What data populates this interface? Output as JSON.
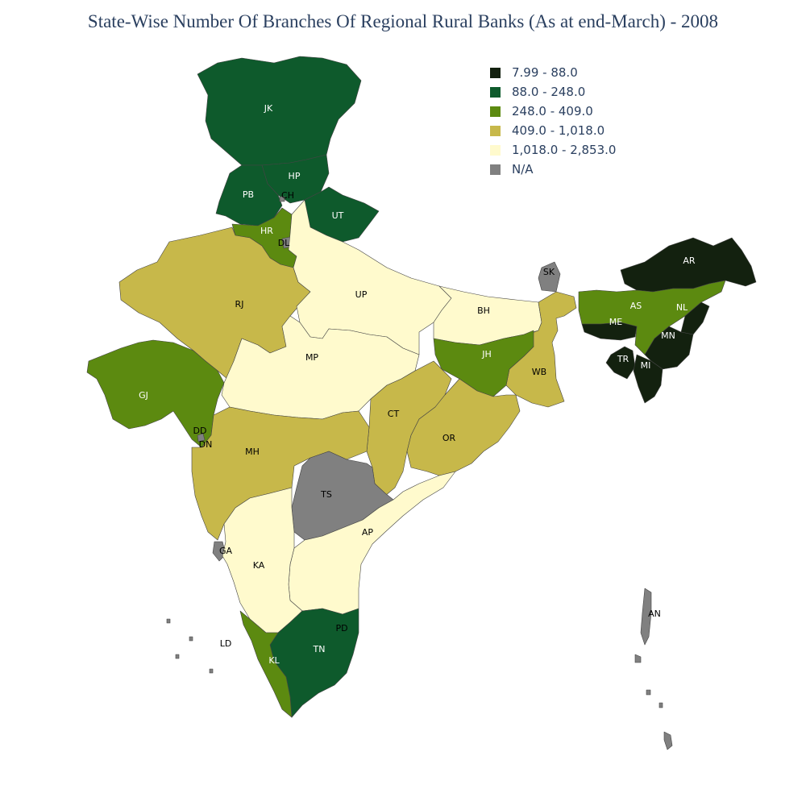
{
  "title": "State-Wise Number Of Branches Of Regional Rural Banks (As at end-March) - 2008",
  "legend": [
    {
      "label": "7.99 - 88.0",
      "color": "#13210f"
    },
    {
      "label": "88.0 - 248.0",
      "color": "#0e5a2c"
    },
    {
      "label": "248.0 - 409.0",
      "color": "#5c8a10"
    },
    {
      "label": "409.0 - 1,018.0",
      "color": "#c7b84a"
    },
    {
      "label": "1,018.0 - 2,853.0",
      "color": "#fffacd"
    },
    {
      "label": "N/A",
      "color": "#808080"
    }
  ],
  "states": [
    {
      "code": "JK",
      "bin": 1
    },
    {
      "code": "HP",
      "bin": 1
    },
    {
      "code": "PB",
      "bin": 1
    },
    {
      "code": "CH",
      "bin": 5
    },
    {
      "code": "UT",
      "bin": 1
    },
    {
      "code": "HR",
      "bin": 2
    },
    {
      "code": "DL",
      "bin": 5
    },
    {
      "code": "RJ",
      "bin": 3
    },
    {
      "code": "UP",
      "bin": 4
    },
    {
      "code": "BH",
      "bin": 4
    },
    {
      "code": "SK",
      "bin": 5
    },
    {
      "code": "AR",
      "bin": 0
    },
    {
      "code": "AS",
      "bin": 2
    },
    {
      "code": "NL",
      "bin": 0
    },
    {
      "code": "ME",
      "bin": 0
    },
    {
      "code": "MN",
      "bin": 0
    },
    {
      "code": "TR",
      "bin": 0
    },
    {
      "code": "MI",
      "bin": 0
    },
    {
      "code": "WB",
      "bin": 3
    },
    {
      "code": "JH",
      "bin": 2
    },
    {
      "code": "GJ",
      "bin": 2
    },
    {
      "code": "MP",
      "bin": 4
    },
    {
      "code": "CT",
      "bin": 3
    },
    {
      "code": "OR",
      "bin": 3
    },
    {
      "code": "DD",
      "bin": 5
    },
    {
      "code": "DN",
      "bin": 5
    },
    {
      "code": "MH",
      "bin": 3
    },
    {
      "code": "TS",
      "bin": 5
    },
    {
      "code": "AP",
      "bin": 4
    },
    {
      "code": "GA",
      "bin": 5
    },
    {
      "code": "KA",
      "bin": 4
    },
    {
      "code": "PD",
      "bin": 5
    },
    {
      "code": "LD",
      "bin": 5
    },
    {
      "code": "TN",
      "bin": 1
    },
    {
      "code": "KL",
      "bin": 2
    },
    {
      "code": "AN",
      "bin": 5
    }
  ]
}
